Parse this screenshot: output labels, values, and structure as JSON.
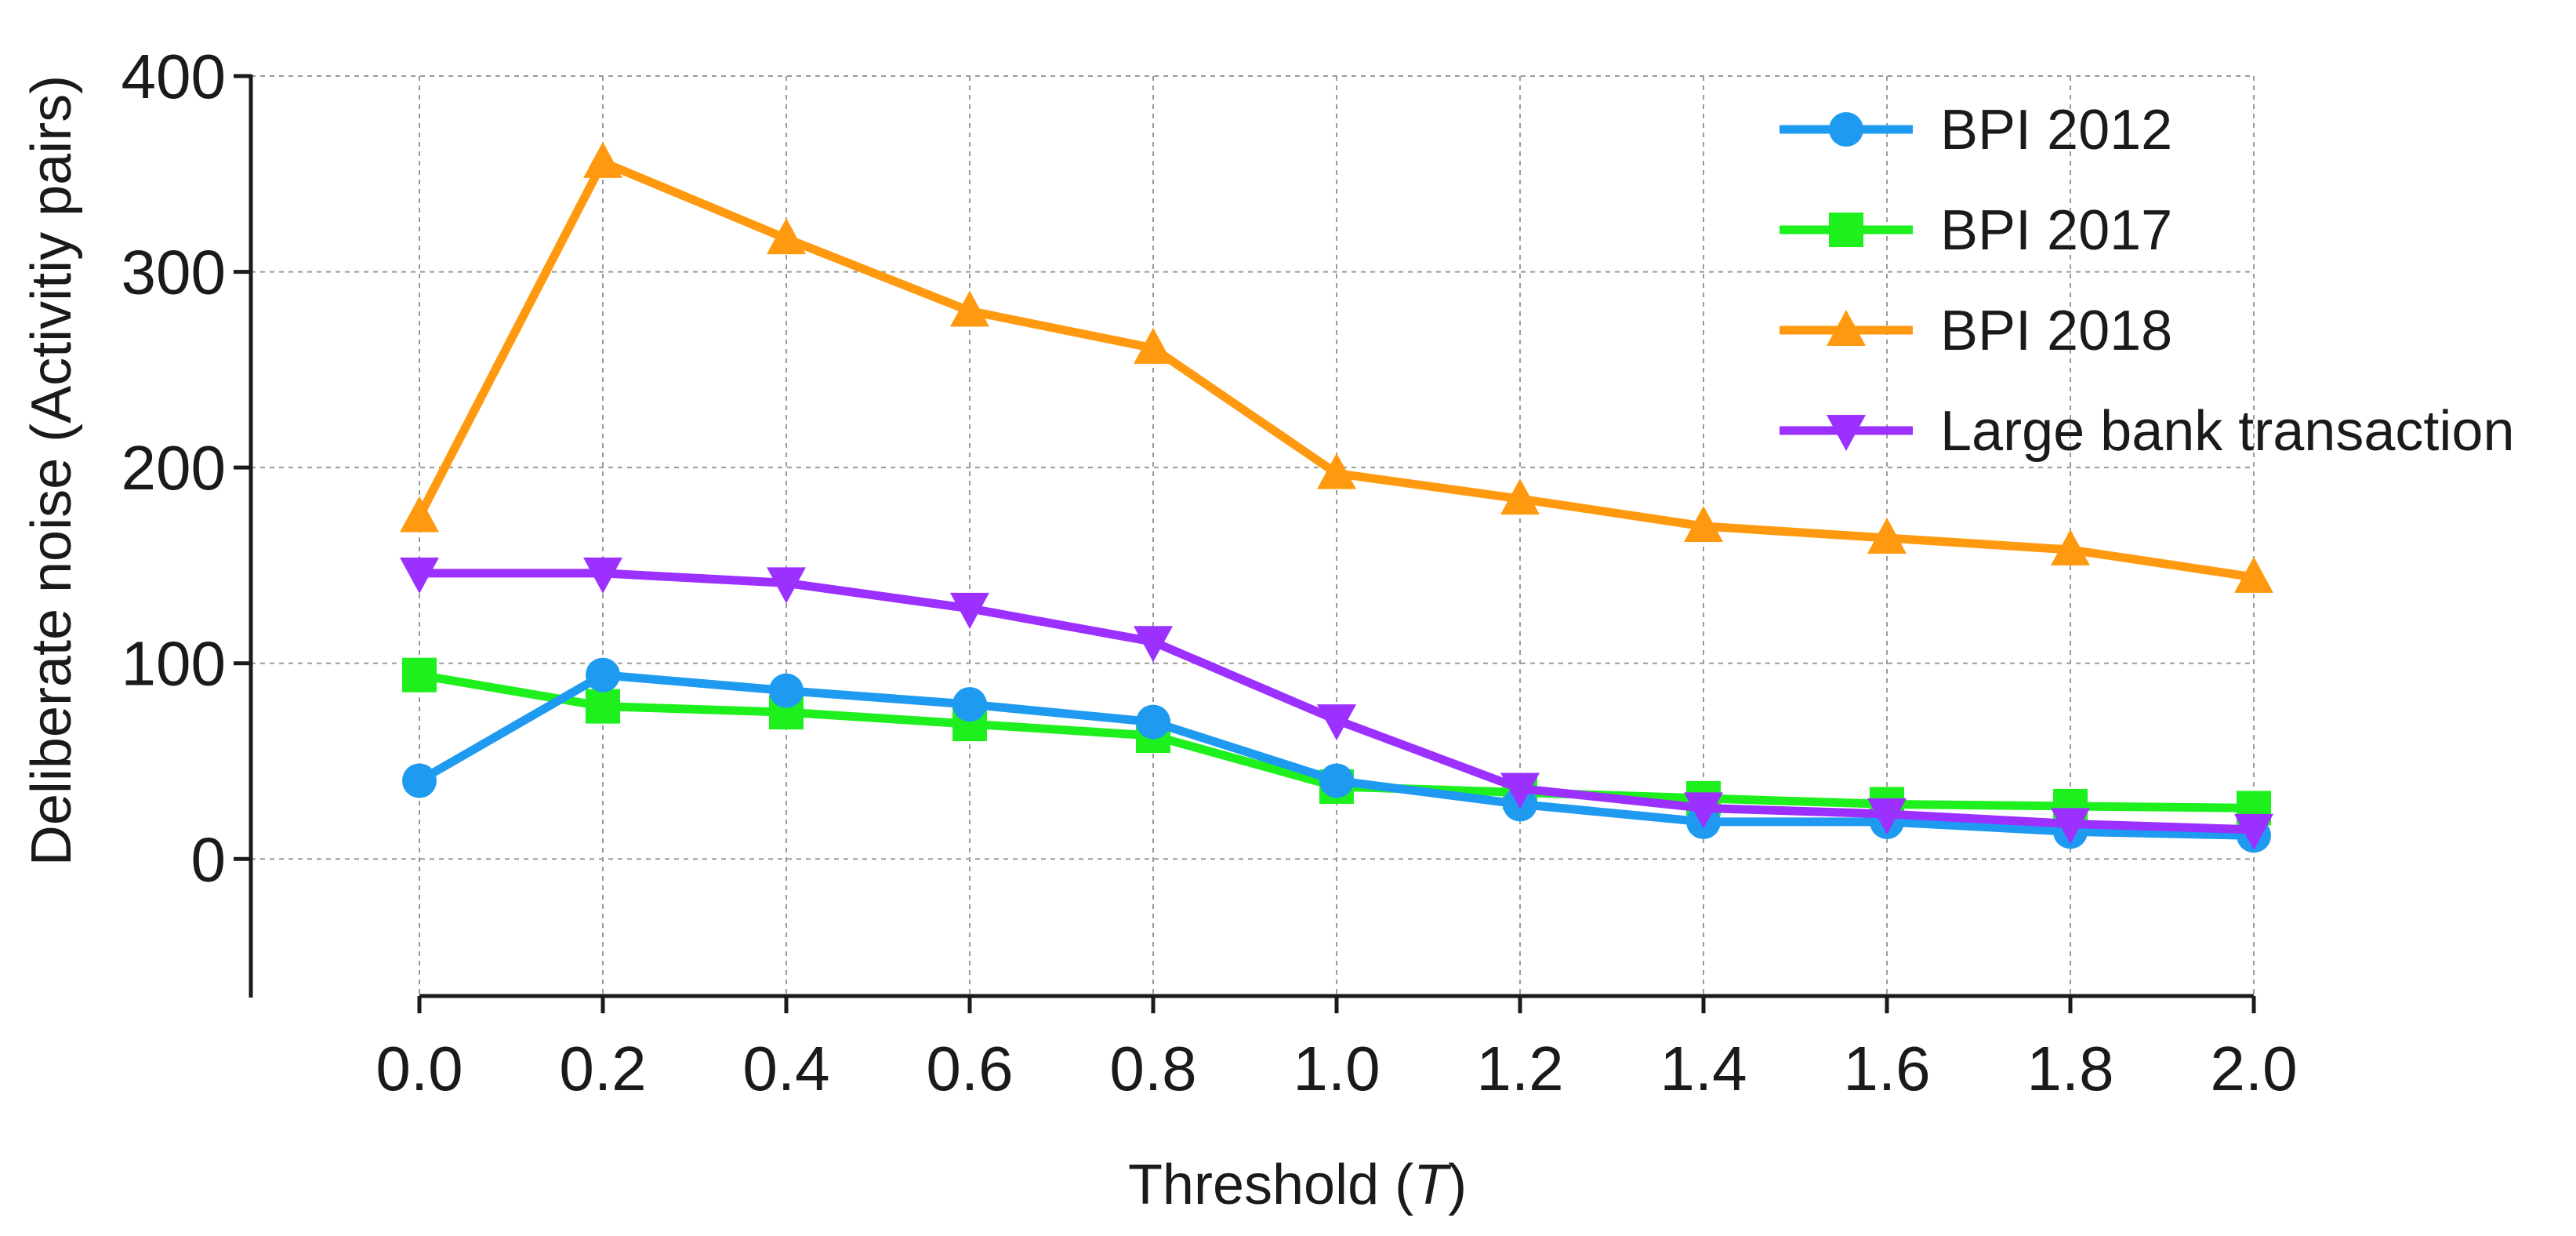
{
  "chart_data": {
    "type": "line",
    "title": "",
    "xlabel": "Threshold (",
    "xlabel_var": "T",
    "xlabel_end": ")",
    "ylabel": "Deliberate noise (Activitiy pairs)",
    "x": [
      0.0,
      0.2,
      0.4,
      0.6,
      0.8,
      1.0,
      1.2,
      1.4,
      1.6,
      1.8,
      2.0
    ],
    "x_tick_labels": [
      "0.0",
      "0.2",
      "0.4",
      "0.6",
      "0.8",
      "1.0",
      "1.2",
      "1.4",
      "1.6",
      "1.8",
      "2.0"
    ],
    "y_ticks": [
      0,
      100,
      200,
      300,
      400
    ],
    "y_tick_labels": [
      "0",
      "100",
      "200",
      "300",
      "400"
    ],
    "ylim": [
      -70,
      400
    ],
    "xlim": [
      0.0,
      2.0
    ],
    "grid": true,
    "legend_position": "top-right",
    "series": [
      {
        "name": "BPI 2012",
        "marker": "circle",
        "color": "#1E9BF0",
        "values": [
          40,
          94,
          86,
          79,
          70,
          40,
          28,
          19,
          19,
          14,
          12
        ]
      },
      {
        "name": "BPI 2017",
        "marker": "square",
        "color": "#1EF01E",
        "values": [
          94,
          78,
          75,
          69,
          63,
          37,
          34,
          31,
          28,
          27,
          26
        ]
      },
      {
        "name": "BPI 2018",
        "marker": "triangle-up",
        "color": "#FF9A10",
        "values": [
          175,
          356,
          317,
          280,
          261,
          197,
          184,
          170,
          164,
          158,
          144
        ]
      },
      {
        "name": "Large bank transaction",
        "marker": "triangle-down",
        "color": "#9B30FF",
        "values": [
          146,
          146,
          141,
          128,
          111,
          71,
          36,
          26,
          23,
          18,
          15
        ]
      }
    ]
  }
}
